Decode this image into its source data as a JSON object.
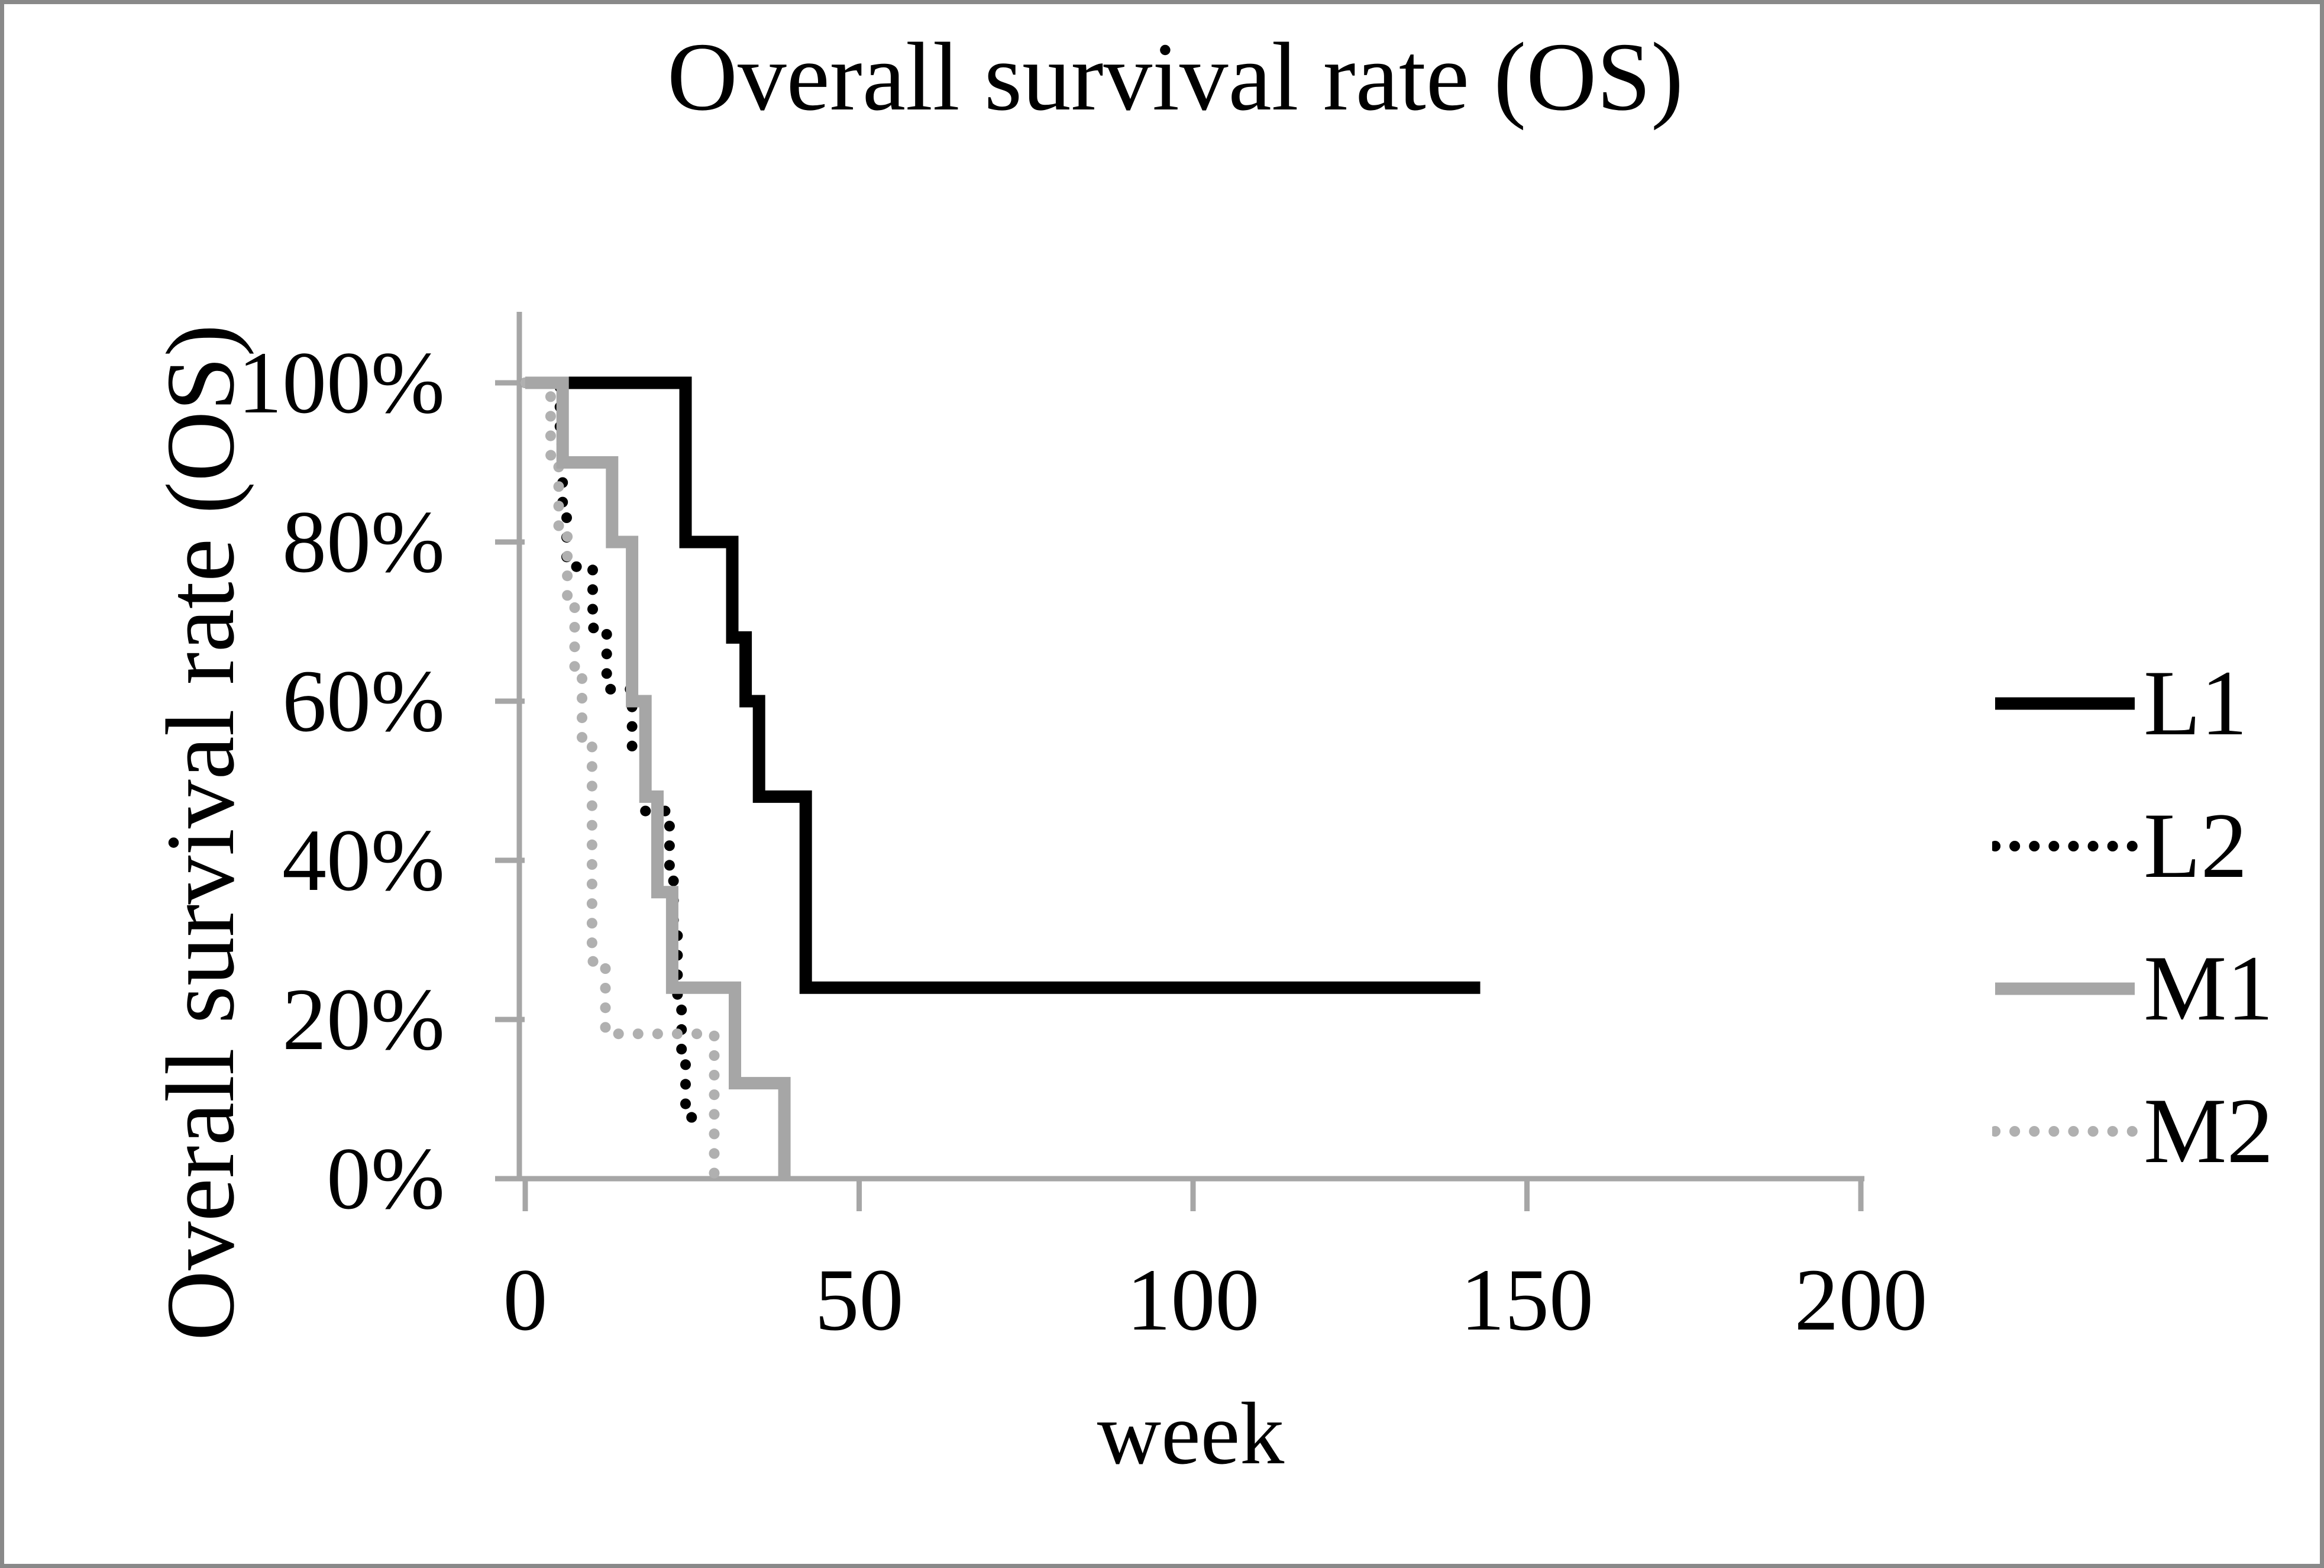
{
  "figure": {
    "title": "Overall survival rate (OS)",
    "x_axis_title": "week",
    "y_axis_title": "Overall survival rate (OS)",
    "border_color": "#898989",
    "background": "#ffffff"
  },
  "chart_data": {
    "type": "line",
    "subtype": "kaplan-meier-step",
    "title": "Overall survival rate (OS)",
    "xlabel": "week",
    "ylabel": "Overall survival rate (OS)",
    "xlim": [
      0,
      200
    ],
    "ylim": [
      0,
      100
    ],
    "grid": false,
    "legend_position": "right",
    "axis_color": "#a6a6a6",
    "x_ticks": [
      {
        "value": 0,
        "label": "0"
      },
      {
        "value": 50,
        "label": "50"
      },
      {
        "value": 100,
        "label": "100"
      },
      {
        "value": 150,
        "label": "150"
      },
      {
        "value": 200,
        "label": "200"
      }
    ],
    "y_ticks": [
      {
        "value": 0,
        "label": "0%"
      },
      {
        "value": 20,
        "label": "20%"
      },
      {
        "value": 40,
        "label": "40%"
      },
      {
        "value": 60,
        "label": "60%"
      },
      {
        "value": 80,
        "label": "80%"
      },
      {
        "value": 100,
        "label": "100%"
      }
    ],
    "series": [
      {
        "name": "L2",
        "color": "#000000",
        "style": "dotted",
        "points": [
          [
            0,
            100
          ],
          [
            5.2,
            100
          ],
          [
            5.2,
            92.3
          ],
          [
            5.6,
            92.3
          ],
          [
            5.6,
            84.6
          ],
          [
            6.2,
            84.6
          ],
          [
            6.2,
            76.9
          ],
          [
            10.1,
            76.9
          ],
          [
            10.1,
            69.2
          ],
          [
            12.2,
            69.2
          ],
          [
            12.2,
            61.5
          ],
          [
            16,
            61.5
          ],
          [
            16,
            53.8
          ],
          [
            18,
            53.8
          ],
          [
            18,
            46.2
          ],
          [
            21.6,
            46.2
          ],
          [
            21.6,
            38.5
          ],
          [
            22.2,
            38.5
          ],
          [
            22.2,
            30.8
          ],
          [
            22.8,
            30.8
          ],
          [
            22.8,
            23.1
          ],
          [
            23.4,
            23.1
          ],
          [
            23.4,
            15.4
          ],
          [
            24,
            15.4
          ],
          [
            24,
            7.7
          ],
          [
            25.5,
            7.7
          ]
        ]
      },
      {
        "name": "M2",
        "color": "#b0b0b0",
        "style": "dotted",
        "points": [
          [
            0,
            100
          ],
          [
            3.8,
            100
          ],
          [
            3.8,
            90.9
          ],
          [
            5,
            90.9
          ],
          [
            5,
            81.8
          ],
          [
            6.3,
            81.8
          ],
          [
            6.3,
            72.7
          ],
          [
            7.4,
            72.7
          ],
          [
            7.4,
            63.6
          ],
          [
            8.5,
            63.6
          ],
          [
            8.5,
            54.5
          ],
          [
            10,
            54.5
          ],
          [
            10,
            27.3
          ],
          [
            12,
            27.3
          ],
          [
            12,
            18.2
          ],
          [
            28.3,
            18.2
          ],
          [
            28.3,
            0
          ]
        ]
      },
      {
        "name": "L1",
        "color": "#000000",
        "style": "solid",
        "points": [
          [
            0,
            100
          ],
          [
            24,
            100
          ],
          [
            24,
            80
          ],
          [
            31,
            80
          ],
          [
            31,
            68
          ],
          [
            33,
            68
          ],
          [
            33,
            60
          ],
          [
            35,
            60
          ],
          [
            35,
            48
          ],
          [
            42,
            48
          ],
          [
            42,
            24
          ],
          [
            143,
            24
          ]
        ]
      },
      {
        "name": "M1",
        "color": "#a6a6a6",
        "style": "solid",
        "points": [
          [
            0,
            100
          ],
          [
            5.6,
            100
          ],
          [
            5.6,
            90
          ],
          [
            13,
            90
          ],
          [
            13,
            80
          ],
          [
            16,
            80
          ],
          [
            16,
            60
          ],
          [
            18,
            60
          ],
          [
            18,
            48
          ],
          [
            19.8,
            48
          ],
          [
            19.8,
            36
          ],
          [
            22,
            36
          ],
          [
            22,
            24
          ],
          [
            31.4,
            24
          ],
          [
            31.4,
            12
          ],
          [
            38.8,
            12
          ],
          [
            38.8,
            0
          ]
        ]
      }
    ],
    "legend_order": [
      "L1",
      "L2",
      "M1",
      "M2"
    ]
  }
}
